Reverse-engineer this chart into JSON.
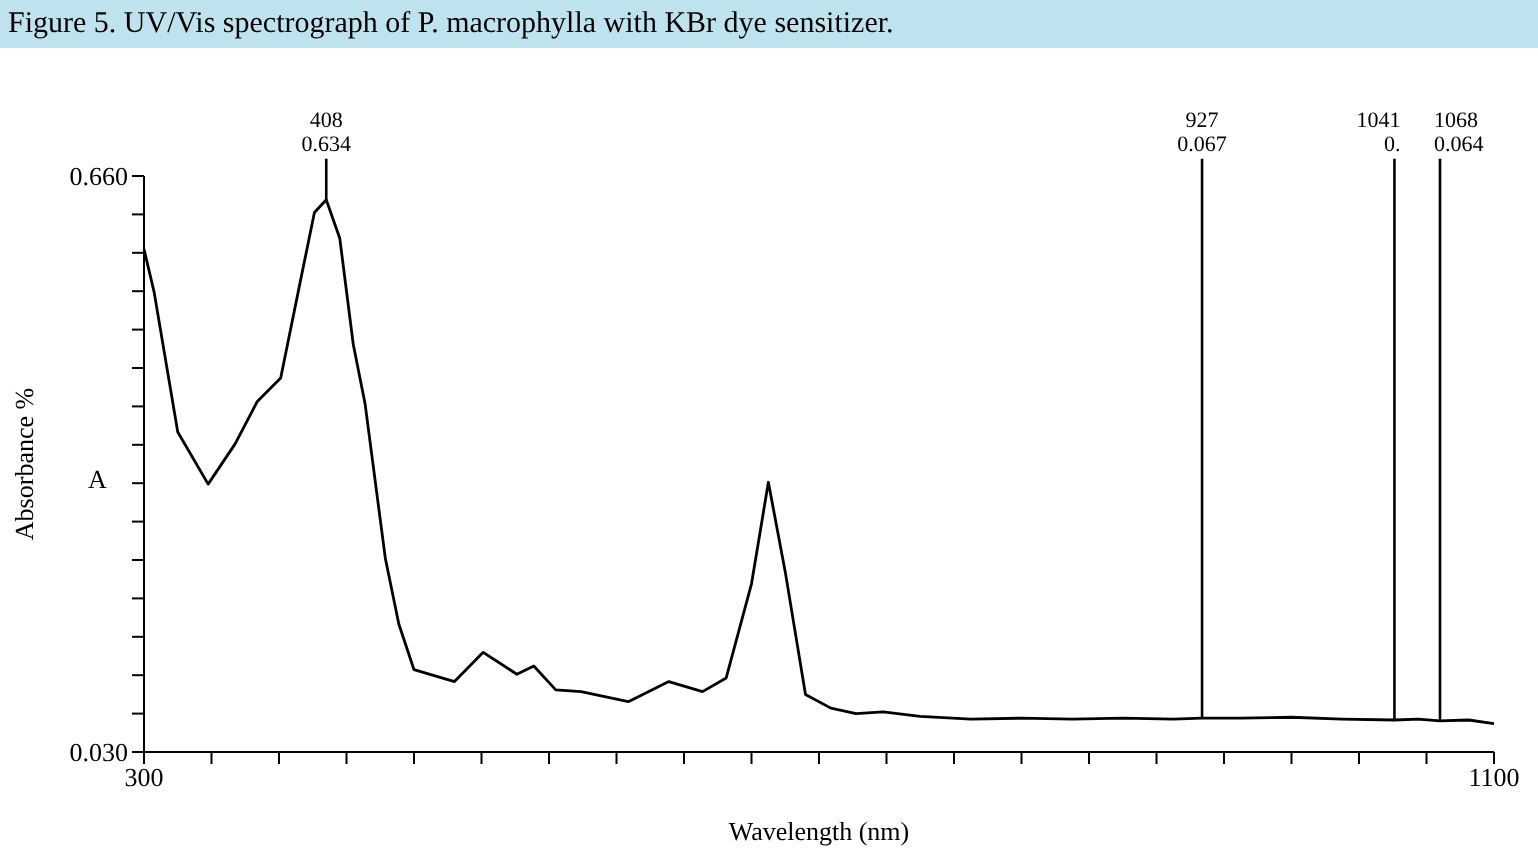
{
  "chart_data": {
    "type": "line",
    "title": "Figure 5. UV/Vis spectrograph of P. macrophylla with KBr dye sensitizer.",
    "xlabel": "Wavelength (nm)",
    "ylabel": "Absorbance %",
    "xlim": [
      300,
      1100
    ],
    "ylim": [
      0.03,
      0.66
    ],
    "xticks": [
      300,
      {
        "value": 340,
        "label": null
      },
      {
        "value": 380,
        "label": null
      },
      {
        "value": 420,
        "label": null
      },
      {
        "value": 460,
        "label": null
      },
      {
        "value": 500,
        "label": null
      },
      {
        "value": 540,
        "label": null
      },
      {
        "value": 580,
        "label": null
      },
      {
        "value": 620,
        "label": null
      },
      {
        "value": 660,
        "label": null
      },
      {
        "value": 700,
        "label": null
      },
      {
        "value": 740,
        "label": null
      },
      {
        "value": 780,
        "label": null
      },
      {
        "value": 820,
        "label": null
      },
      {
        "value": 860,
        "label": null
      },
      {
        "value": 900,
        "label": null
      },
      {
        "value": 940,
        "label": null
      },
      {
        "value": 980,
        "label": null
      },
      {
        "value": 1020,
        "label": null
      },
      {
        "value": 1060,
        "label": null
      },
      1100
    ],
    "yticks": [
      {
        "value": 0.03,
        "label": "0.030"
      },
      {
        "value": 0.072,
        "label": null
      },
      {
        "value": 0.114,
        "label": null
      },
      {
        "value": 0.156,
        "label": null
      },
      {
        "value": 0.198,
        "label": null
      },
      {
        "value": 0.24,
        "label": null
      },
      {
        "value": 0.282,
        "label": null
      },
      {
        "value": 0.324,
        "label": null
      },
      {
        "value": 0.366,
        "label": null
      },
      {
        "value": 0.408,
        "label": null
      },
      {
        "value": 0.45,
        "label": null
      },
      {
        "value": 0.492,
        "label": null
      },
      {
        "value": 0.534,
        "label": null
      },
      {
        "value": 0.576,
        "label": null
      },
      {
        "value": 0.618,
        "label": null
      },
      {
        "value": 0.66,
        "label": "0.660"
      }
    ],
    "marker": "none",
    "line_style": "solid",
    "series": [
      {
        "color": "#000000",
        "x": [
          300,
          306,
          320,
          338,
          354,
          367,
          381,
          393,
          401,
          408,
          416,
          424,
          431,
          443,
          451,
          460,
          484,
          501,
          521,
          531,
          544,
          559,
          587,
          611,
          631,
          645,
          660,
          670,
          680,
          692,
          707,
          722,
          738,
          760,
          790,
          820,
          850,
          880,
          910,
          927,
          950,
          980,
          1010,
          1041,
          1055,
          1068,
          1085,
          1100
        ],
        "values": [
          0.58,
          0.533,
          0.38,
          0.323,
          0.367,
          0.413,
          0.439,
          0.548,
          0.62,
          0.634,
          0.592,
          0.476,
          0.411,
          0.242,
          0.17,
          0.12,
          0.107,
          0.139,
          0.115,
          0.124,
          0.098,
          0.096,
          0.085,
          0.107,
          0.096,
          0.111,
          0.214,
          0.325,
          0.227,
          0.093,
          0.078,
          0.072,
          0.074,
          0.069,
          0.066,
          0.067,
          0.066,
          0.067,
          0.066,
          0.067,
          0.067,
          0.068,
          0.066,
          0.065,
          0.066,
          0.064,
          0.065,
          0.061
        ]
      }
    ],
    "annotations": [
      "A",
      {
        "text": "408\n0.634",
        "x": 408,
        "y": 0.634
      },
      {
        "text": "927\n0.067",
        "x": 927,
        "y": 0.067
      },
      {
        "text": "1041\n0.",
        "x": 1041,
        "y": 0.065
      },
      {
        "text": "1068\n0.064",
        "x": 1068,
        "y": 0.064
      }
    ]
  }
}
